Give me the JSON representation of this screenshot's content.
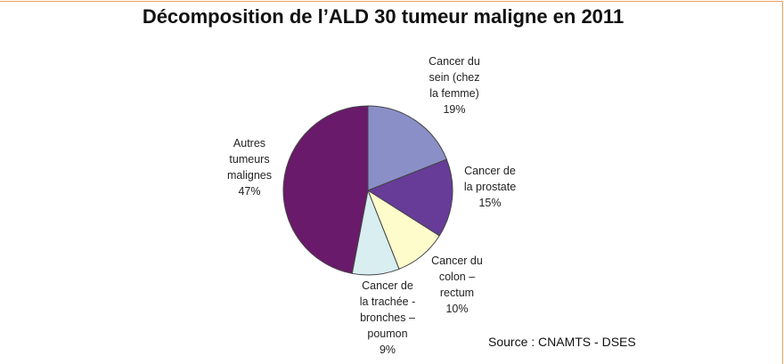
{
  "chart_data": {
    "type": "pie",
    "title": "Décomposition de l’ALD 30 tumeur maligne en 2011",
    "categories": [
      "Cancer du\nsein (chez\nla femme)",
      "Cancer de\nla prostate",
      "Cancer du\ncolon –\nrectum",
      "Cancer de\nla trachée -\nbronches –\npoumon",
      "Autres\ntumeurs\nmalignes"
    ],
    "values": [
      19,
      15,
      10,
      9,
      47
    ],
    "value_labels": [
      "19%",
      "15%",
      "10%",
      "9%",
      "47%"
    ],
    "colors": [
      "#8a8fc8",
      "#663c98",
      "#fffccc",
      "#d8eef0",
      "#6a1a6a"
    ],
    "source": "Source : CNAMTS - DSES"
  }
}
